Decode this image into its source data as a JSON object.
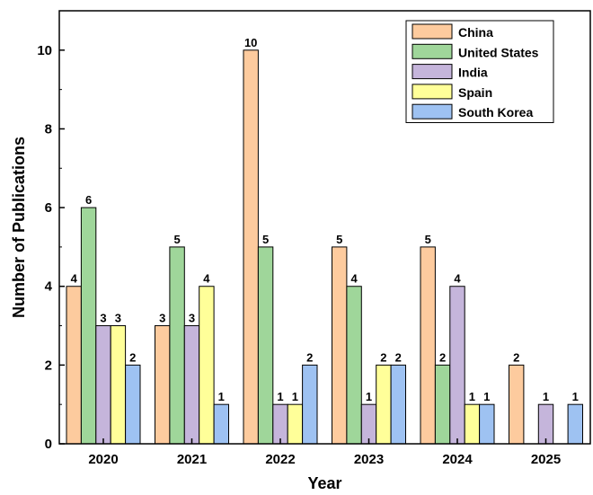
{
  "chart_data": {
    "type": "bar",
    "title": "",
    "xlabel": "Year",
    "ylabel": "Number of Publications",
    "categories": [
      "2020",
      "2021",
      "2022",
      "2023",
      "2024",
      "2025"
    ],
    "ylim": [
      0,
      11
    ],
    "yticks": [
      0,
      2,
      4,
      6,
      8,
      10
    ],
    "legend_position": "top-right",
    "series": [
      {
        "name": "China",
        "color": "#FDCB9E",
        "values": [
          4,
          3,
          10,
          5,
          5,
          2
        ]
      },
      {
        "name": "United States",
        "color": "#9FD69A",
        "values": [
          6,
          5,
          5,
          4,
          2,
          0
        ]
      },
      {
        "name": "India",
        "color": "#C5B5DB",
        "values": [
          3,
          3,
          1,
          1,
          4,
          1
        ]
      },
      {
        "name": "Spain",
        "color": "#FFFF99",
        "values": [
          3,
          4,
          1,
          2,
          1,
          0
        ]
      },
      {
        "name": "South Korea",
        "color": "#9EC2F2",
        "values": [
          2,
          1,
          2,
          2,
          1,
          1
        ]
      }
    ]
  }
}
